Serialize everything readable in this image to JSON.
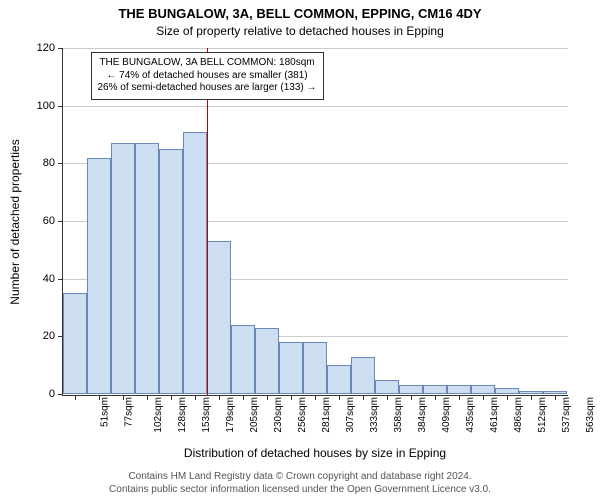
{
  "chart": {
    "type": "bar",
    "title": "THE BUNGALOW, 3A, BELL COMMON, EPPING, CM16 4DY",
    "subtitle": "Size of property relative to detached houses in Epping",
    "ylabel": "Number of detached properties",
    "xlabel": "Distribution of detached houses by size in Epping",
    "background_color": "#ffffff",
    "grid_color": "#cccccc",
    "bar_fill": "#cdddf2",
    "bar_stroke": "#6a87b5",
    "ref_line_color": "#c00000",
    "ref_line_x_index": 5,
    "ylim": [
      0,
      120
    ],
    "ytick_step": 20,
    "categories": [
      "51sqm",
      "77sqm",
      "102sqm",
      "128sqm",
      "153sqm",
      "179sqm",
      "205sqm",
      "230sqm",
      "256sqm",
      "281sqm",
      "307sqm",
      "333sqm",
      "358sqm",
      "384sqm",
      "409sqm",
      "435sqm",
      "461sqm",
      "486sqm",
      "512sqm",
      "537sqm",
      "563sqm"
    ],
    "values": [
      35,
      82,
      87,
      87,
      85,
      91,
      53,
      24,
      23,
      18,
      18,
      10,
      13,
      5,
      3,
      3,
      3,
      3,
      2,
      1,
      1
    ],
    "bar_width_ratio": 0.98,
    "annotation": {
      "line1": "THE BUNGALOW, 3A BELL COMMON: 180sqm",
      "line2": "← 74% of detached houses are smaller (381)",
      "line3": "26% of semi-detached houses are larger (133) →"
    }
  },
  "footer": {
    "line1": "Contains HM Land Registry data © Crown copyright and database right 2024.",
    "line2": "Contains public sector information licensed under the Open Government Licence v3.0."
  }
}
